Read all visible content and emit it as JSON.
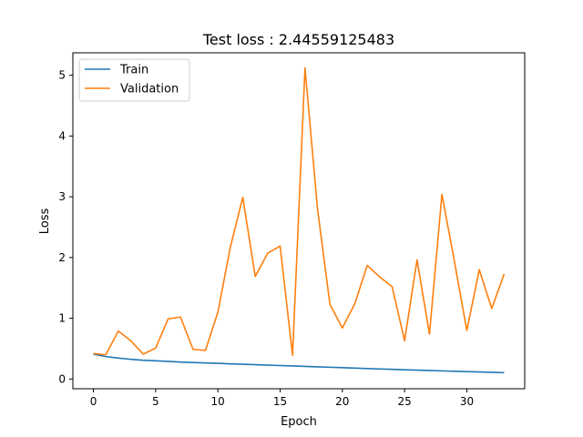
{
  "chart_data": {
    "type": "line",
    "title": "Test loss : 2.44559125483",
    "xlabel": "Epoch",
    "ylabel": "Loss",
    "xlim": [
      -1.65,
      34.65
    ],
    "ylim": [
      -0.16,
      5.37
    ],
    "xticks": [
      0,
      5,
      10,
      15,
      20,
      25,
      30
    ],
    "yticks": [
      0,
      1,
      2,
      3,
      4,
      5
    ],
    "grid": false,
    "legend_position": "upper-left",
    "x": [
      0,
      1,
      2,
      3,
      4,
      5,
      6,
      7,
      8,
      9,
      10,
      11,
      12,
      13,
      14,
      15,
      16,
      17,
      18,
      19,
      20,
      21,
      22,
      23,
      24,
      25,
      26,
      27,
      28,
      29,
      30,
      31,
      32,
      33
    ],
    "series": [
      {
        "name": "Train",
        "color": "#1f77b4",
        "values": [
          0.41,
          0.37,
          0.345,
          0.325,
          0.31,
          0.3,
          0.29,
          0.28,
          0.272,
          0.265,
          0.258,
          0.25,
          0.243,
          0.236,
          0.229,
          0.222,
          0.215,
          0.208,
          0.201,
          0.194,
          0.187,
          0.18,
          0.173,
          0.166,
          0.159,
          0.152,
          0.146,
          0.14,
          0.134,
          0.128,
          0.122,
          0.116,
          0.11,
          0.104
        ]
      },
      {
        "name": "Validation",
        "color": "#ff7f0e",
        "values": [
          0.42,
          0.4,
          0.79,
          0.63,
          0.41,
          0.51,
          0.99,
          1.02,
          0.49,
          0.47,
          1.1,
          2.17,
          2.99,
          1.69,
          2.07,
          2.19,
          0.39,
          5.12,
          2.81,
          1.23,
          0.84,
          1.24,
          1.87,
          1.68,
          1.52,
          0.63,
          1.96,
          0.74,
          3.04,
          1.94,
          0.8,
          1.8,
          1.16,
          1.73
        ]
      }
    ]
  }
}
